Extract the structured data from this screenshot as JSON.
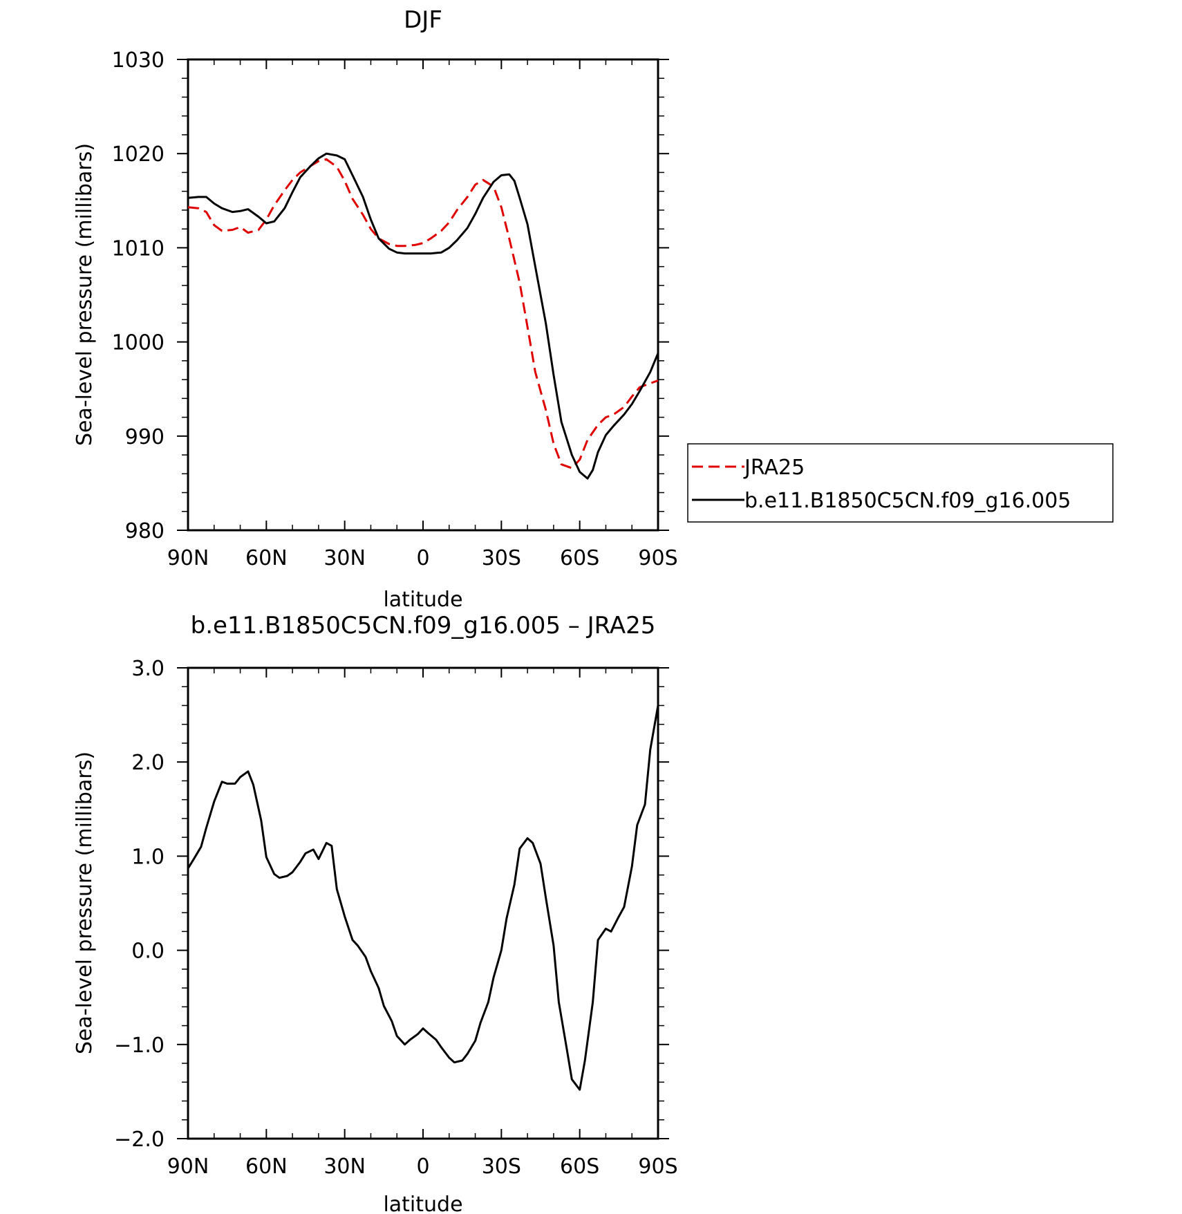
{
  "chart_data": [
    {
      "type": "line",
      "title": "DJF",
      "xlabel": "latitude",
      "ylabel": "Sea-level pressure (millibars)",
      "xlim": [
        90,
        -90
      ],
      "ylim": [
        980,
        1030
      ],
      "x_ticks": [
        90,
        60,
        30,
        0,
        -30,
        -60,
        -90
      ],
      "x_tick_labels": [
        "90N",
        "60N",
        "30N",
        "0",
        "30S",
        "60S",
        "90S"
      ],
      "y_ticks": [
        980,
        990,
        1000,
        1010,
        1020,
        1030
      ],
      "y_tick_labels": [
        "980",
        "990",
        "1000",
        "1010",
        "1020",
        "1030"
      ],
      "legend_position": "right",
      "series": [
        {
          "name": "JRA25",
          "color": "#e00000",
          "dash": true,
          "x": [
            90,
            86,
            83,
            80,
            77,
            73,
            70,
            67,
            63,
            60,
            57,
            53,
            50,
            47,
            43,
            40,
            37,
            33,
            30,
            27,
            23,
            20,
            17,
            13,
            10,
            7,
            3,
            0,
            -3,
            -7,
            -10,
            -13,
            -17,
            -20,
            -23,
            -27,
            -30,
            -33,
            -37,
            -40,
            -43,
            -47,
            -50,
            -53,
            -57,
            -60,
            -63,
            -67,
            -70,
            -73,
            -77,
            -80,
            -83,
            -87,
            -90
          ],
          "y": [
            1014.3,
            1014.2,
            1013.8,
            1012.4,
            1011.8,
            1011.9,
            1012.2,
            1011.6,
            1011.9,
            1013.0,
            1014.5,
            1016.1,
            1017.2,
            1018.0,
            1018.7,
            1019.2,
            1019.4,
            1018.6,
            1017.1,
            1015.2,
            1013.5,
            1012.0,
            1011.0,
            1010.4,
            1010.2,
            1010.2,
            1010.3,
            1010.5,
            1011.0,
            1011.8,
            1012.7,
            1014.0,
            1015.4,
            1016.7,
            1017.2,
            1016.5,
            1014.3,
            1011.0,
            1006.3,
            1001.6,
            996.8,
            992.8,
            989.2,
            987.0,
            986.6,
            987.5,
            989.6,
            991.2,
            992.0,
            992.3,
            993.1,
            994.2,
            995.2,
            995.6,
            995.9
          ]
        },
        {
          "name": "b.e11.B1850C5CN.f09_g16.005",
          "color": "#000000",
          "dash": false,
          "x": [
            90,
            86,
            83,
            80,
            77,
            73,
            70,
            67,
            63,
            60,
            57,
            53,
            50,
            47,
            43,
            40,
            37,
            33,
            30,
            27,
            23,
            20,
            17,
            13,
            10,
            7,
            3,
            0,
            -3,
            -7,
            -10,
            -13,
            -17,
            -20,
            -23,
            -27,
            -30,
            -33,
            -35,
            -37,
            -40,
            -43,
            -47,
            -50,
            -53,
            -57,
            -60,
            -63,
            -65,
            -67,
            -70,
            -73,
            -77,
            -80,
            -83,
            -87,
            -90
          ],
          "y": [
            1015.3,
            1015.4,
            1015.4,
            1014.7,
            1014.2,
            1013.8,
            1013.9,
            1014.1,
            1013.3,
            1012.6,
            1012.8,
            1014.2,
            1015.9,
            1017.5,
            1018.7,
            1019.5,
            1020.0,
            1019.8,
            1019.4,
            1017.7,
            1015.4,
            1013.0,
            1011.0,
            1009.9,
            1009.5,
            1009.4,
            1009.4,
            1009.4,
            1009.4,
            1009.5,
            1010.0,
            1010.8,
            1012.1,
            1013.6,
            1015.3,
            1017.0,
            1017.7,
            1017.8,
            1017.1,
            1015.3,
            1012.5,
            1008.0,
            1002.0,
            996.5,
            991.5,
            988.0,
            986.2,
            985.5,
            986.4,
            988.3,
            990.1,
            991.1,
            992.3,
            993.4,
            994.8,
            996.8,
            998.8
          ]
        }
      ]
    },
    {
      "type": "line",
      "title": "b.e11.B1850C5CN.f09_g16.005 – JRA25",
      "xlabel": "latitude",
      "ylabel": "Sea-level pressure (millibars)",
      "xlim": [
        90,
        -90
      ],
      "ylim": [
        -2.0,
        3.0
      ],
      "x_ticks": [
        90,
        60,
        30,
        0,
        -30,
        -60,
        -90
      ],
      "x_tick_labels": [
        "90N",
        "60N",
        "30N",
        "0",
        "30S",
        "60S",
        "90S"
      ],
      "y_ticks": [
        -2.0,
        -1.0,
        0.0,
        1.0,
        2.0,
        3.0
      ],
      "y_tick_labels": [
        "−2.0",
        "−1.0",
        "0.0",
        "1.0",
        "2.0",
        "3.0"
      ],
      "series": [
        {
          "color": "#000000",
          "dash": false,
          "x": [
            90,
            88,
            85,
            83,
            80,
            77,
            75,
            72,
            70,
            67,
            65,
            62,
            60,
            57,
            55,
            52,
            50,
            47,
            45,
            42,
            40,
            37,
            35,
            33,
            30,
            27,
            25,
            22,
            20,
            17,
            15,
            12,
            10,
            7,
            5,
            2,
            0,
            -2,
            -5,
            -7,
            -10,
            -12,
            -15,
            -17,
            -20,
            -22,
            -25,
            -27,
            -30,
            -32,
            -35,
            -37,
            -40,
            -42,
            -45,
            -47,
            -50,
            -52,
            -55,
            -57,
            -60,
            -62,
            -65,
            -67,
            -70,
            -72,
            -75,
            -77,
            -80,
            -82,
            -85,
            -87,
            -90
          ],
          "y": [
            0.87,
            0.96,
            1.1,
            1.3,
            1.58,
            1.79,
            1.77,
            1.77,
            1.84,
            1.9,
            1.76,
            1.38,
            0.99,
            0.81,
            0.77,
            0.79,
            0.83,
            0.94,
            1.03,
            1.07,
            0.97,
            1.14,
            1.11,
            0.65,
            0.36,
            0.11,
            0.05,
            -0.07,
            -0.22,
            -0.4,
            -0.59,
            -0.75,
            -0.91,
            -1.0,
            -0.95,
            -0.89,
            -0.83,
            -0.88,
            -0.95,
            -1.03,
            -1.14,
            -1.19,
            -1.17,
            -1.1,
            -0.96,
            -0.77,
            -0.55,
            -0.29,
            0.0,
            0.34,
            0.7,
            1.08,
            1.19,
            1.14,
            0.92,
            0.56,
            0.05,
            -0.55,
            -1.04,
            -1.37,
            -1.48,
            -1.17,
            -0.55,
            0.11,
            0.23,
            0.2,
            0.36,
            0.46,
            0.89,
            1.33,
            1.55,
            2.13,
            2.6
          ]
        }
      ]
    }
  ]
}
